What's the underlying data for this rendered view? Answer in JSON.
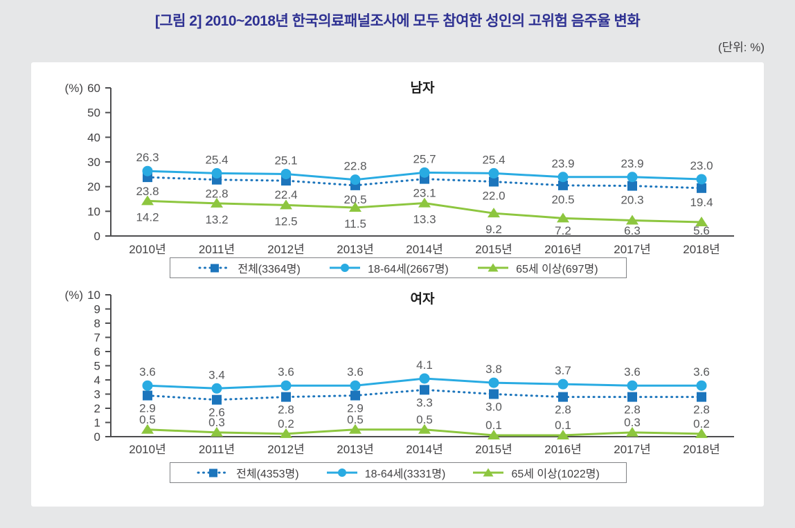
{
  "page": {
    "title": "[그림 2] 2010~2018년 한국의료패널조사에 모두 참여한 성인의 고위험 음주율 변화",
    "unit_label": "(단위: %)"
  },
  "colors": {
    "title_text": "#2E3192",
    "axis": "#4D4D4F",
    "tick_text": "#414042",
    "data_label_text": "#58595B",
    "chart_title_text": "#1A1A1A",
    "page_background": "#E6E7E8",
    "panel_background": "#FFFFFF",
    "legend_border": "#808285",
    "total_series": "#1C75BC",
    "age_18_64_series": "#29ABE2",
    "age_65_plus_series": "#8DC63F"
  },
  "chart_data": [
    {
      "type": "line",
      "title": "남자",
      "ylabel": "(%)",
      "ylim": [
        0,
        60
      ],
      "ytick_step": 10,
      "grid": false,
      "legend_position": "bottom",
      "categories": [
        "2010년",
        "2011년",
        "2012년",
        "2013년",
        "2014년",
        "2015년",
        "2016년",
        "2017년",
        "2018년"
      ],
      "series": [
        {
          "key": "total",
          "name": "전체(3364명)",
          "marker": "square",
          "line": "dotted",
          "color": "#1C75BC",
          "values": [
            23.8,
            22.8,
            22.4,
            20.5,
            23.1,
            22.0,
            20.5,
            20.3,
            19.4
          ]
        },
        {
          "key": "age-18-64",
          "name": "18-64세(2667명)",
          "marker": "circle",
          "line": "solid",
          "color": "#29ABE2",
          "values": [
            26.3,
            25.4,
            25.1,
            22.8,
            25.7,
            25.4,
            23.9,
            23.9,
            23.0
          ]
        },
        {
          "key": "age-65-plus",
          "name": "65세 이상(697명)",
          "marker": "triangle",
          "line": "solid",
          "color": "#8DC63F",
          "values": [
            14.2,
            13.2,
            12.5,
            11.5,
            13.3,
            9.2,
            7.2,
            6.3,
            5.6
          ]
        }
      ]
    },
    {
      "type": "line",
      "title": "여자",
      "ylabel": "(%)",
      "ylim": [
        0,
        10
      ],
      "ytick_step": 1,
      "grid": false,
      "legend_position": "bottom",
      "categories": [
        "2010년",
        "2011년",
        "2012년",
        "2013년",
        "2014년",
        "2015년",
        "2016년",
        "2017년",
        "2018년"
      ],
      "series": [
        {
          "key": "total",
          "name": "전체(4353명)",
          "marker": "square",
          "line": "dotted",
          "color": "#1C75BC",
          "values": [
            2.9,
            2.6,
            2.8,
            2.9,
            3.3,
            3.0,
            2.8,
            2.8,
            2.8
          ]
        },
        {
          "key": "age-18-64",
          "name": "18-64세(3331명)",
          "marker": "circle",
          "line": "solid",
          "color": "#29ABE2",
          "values": [
            3.6,
            3.4,
            3.6,
            3.6,
            4.1,
            3.8,
            3.7,
            3.6,
            3.6
          ]
        },
        {
          "key": "age-65-plus",
          "name": "65세 이상(1022명)",
          "marker": "triangle",
          "line": "solid",
          "color": "#8DC63F",
          "values": [
            0.5,
            0.3,
            0.2,
            0.5,
            0.5,
            0.1,
            0.1,
            0.3,
            0.2
          ]
        }
      ]
    }
  ]
}
